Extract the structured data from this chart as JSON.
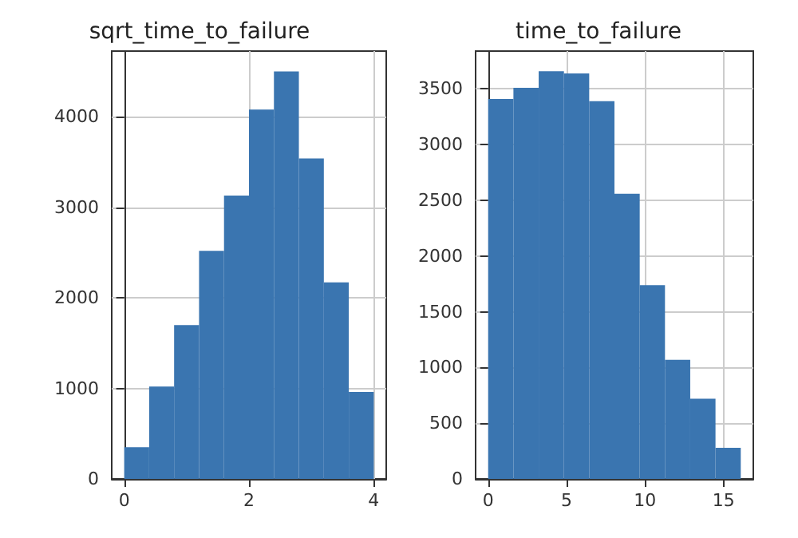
{
  "chart_data": [
    {
      "type": "histogram",
      "title": "sqrt_time_to_failure",
      "bins": [
        0,
        0.4,
        0.8,
        1.2,
        1.6,
        2.0,
        2.4,
        2.8,
        3.2,
        3.6,
        4.0
      ],
      "values": [
        350,
        1020,
        1700,
        2520,
        3130,
        4080,
        4500,
        3540,
        2170,
        960
      ],
      "color": "#3a75b0",
      "xlim": [
        -0.2,
        4.2
      ],
      "xticks": [
        0,
        2,
        4
      ],
      "ylim": [
        0,
        4725
      ],
      "yticks": [
        0,
        1000,
        2000,
        3000,
        4000
      ],
      "grid": true
    },
    {
      "type": "histogram",
      "title": "time_to_failure",
      "bins": [
        0,
        1.61,
        3.22,
        4.83,
        6.44,
        8.05,
        9.66,
        11.27,
        12.88,
        14.49,
        16.1
      ],
      "values": [
        3410,
        3510,
        3660,
        3640,
        3390,
        2560,
        1740,
        1070,
        720,
        280
      ],
      "color": "#3a75b0",
      "xlim": [
        -0.8,
        16.9
      ],
      "xticks": [
        0,
        5,
        10,
        15
      ],
      "ylim": [
        0,
        3840
      ],
      "yticks": [
        0,
        500,
        1000,
        1500,
        2000,
        2500,
        3000,
        3500
      ],
      "grid": true
    }
  ]
}
